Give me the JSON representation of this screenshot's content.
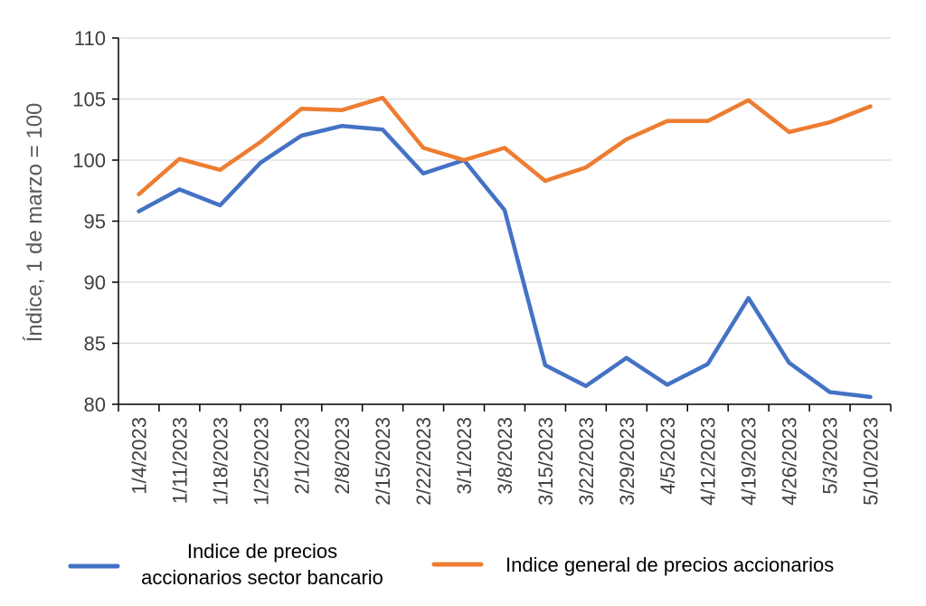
{
  "chart_data": {
    "type": "line",
    "title": "",
    "xlabel": "",
    "ylabel": "Índice, 1 de marzo = 100",
    "ylim": [
      80,
      110
    ],
    "yticks": [
      80,
      85,
      90,
      95,
      100,
      105,
      110
    ],
    "grid": true,
    "categories": [
      "1/4/2023",
      "1/11/2023",
      "1/18/2023",
      "1/25/2023",
      "2/1/2023",
      "2/8/2023",
      "2/15/2023",
      "2/22/2023",
      "3/1/2023",
      "3/8/2023",
      "3/15/2023",
      "3/22/2023",
      "3/29/2023",
      "4/5/2023",
      "4/12/2023",
      "4/19/2023",
      "4/26/2023",
      "5/3/2023",
      "5/10/2023"
    ],
    "series": [
      {
        "name": "Indice de precios accionarios sector bancario",
        "name_lines": [
          "Indice de precios",
          "accionarios sector bancario"
        ],
        "color": "#4472C4",
        "values": [
          95.8,
          97.6,
          96.3,
          99.8,
          102.0,
          102.8,
          102.5,
          98.9,
          100.0,
          95.9,
          83.2,
          81.5,
          83.8,
          81.6,
          83.3,
          88.7,
          83.4,
          81.0,
          80.6
        ]
      },
      {
        "name": "Indice general de precios accionarios",
        "name_lines": [
          "Indice general de precios accionarios"
        ],
        "color": "#ED7D31",
        "values": [
          97.2,
          100.1,
          99.2,
          101.5,
          104.2,
          104.1,
          105.1,
          101.0,
          100.0,
          101.0,
          98.3,
          99.4,
          101.7,
          103.2,
          103.2,
          104.9,
          102.3,
          103.1,
          104.4
        ]
      }
    ],
    "legend_position": "bottom"
  }
}
